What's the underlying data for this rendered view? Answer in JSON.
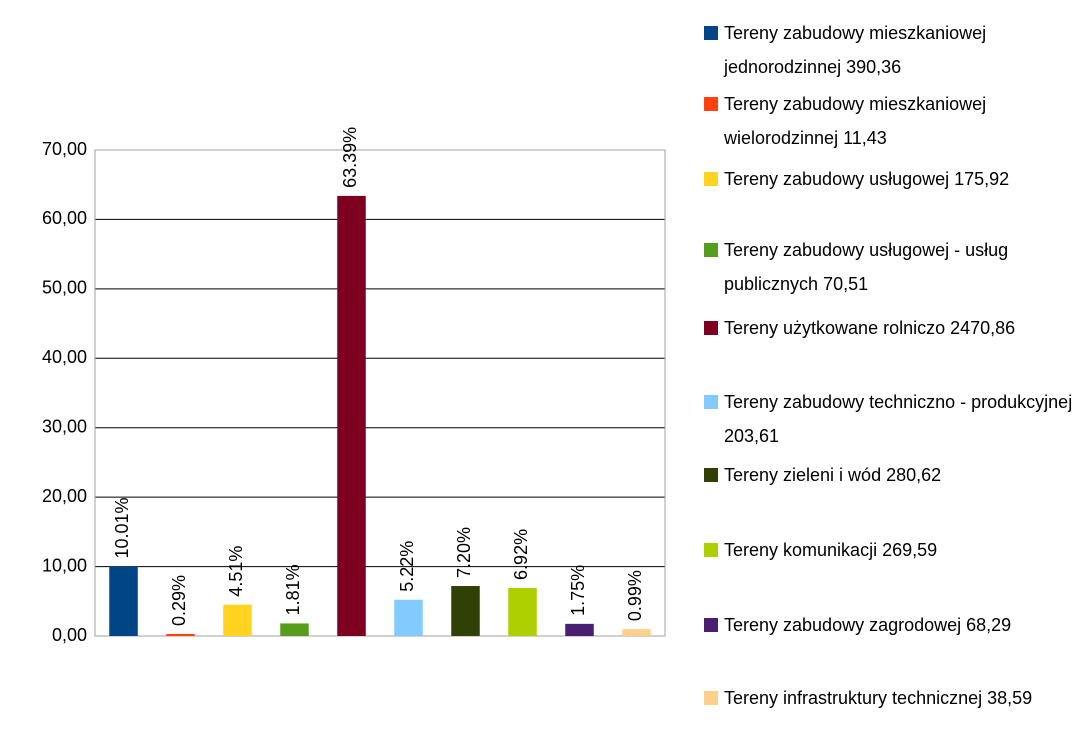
{
  "chart_data": {
    "type": "bar",
    "series": [
      {
        "name": "Tereny zabudowy mieszkaniowej jednorodzinnej 390,36",
        "color": "#004586",
        "values": [
          10.01
        ],
        "value_labels": [
          "10.01%"
        ]
      },
      {
        "name": "Tereny zabudowy mieszkaniowej wielorodzinnej 11,43",
        "color": "#ff420e",
        "values": [
          0.29
        ],
        "value_labels": [
          "0.29%"
        ]
      },
      {
        "name": "Tereny zabudowy usługowej 175,92",
        "color": "#ffd320",
        "values": [
          4.51
        ],
        "value_labels": [
          "4.51%"
        ]
      },
      {
        "name": "Tereny zabudowy usługowej - usług publicznych 70,51",
        "color": "#579d1c",
        "values": [
          1.81
        ],
        "value_labels": [
          "1.81%"
        ]
      },
      {
        "name": "Tereny użytkowane rolniczo 2470,86",
        "color": "#7e0021",
        "values": [
          63.39
        ],
        "value_labels": [
          "63.39%"
        ]
      },
      {
        "name": "Tereny zabudowy techniczno - produkcyjnej 203,61",
        "color": "#83caff",
        "values": [
          5.22
        ],
        "value_labels": [
          "5.22%"
        ]
      },
      {
        "name": "Tereny zieleni i wód 280,62",
        "color": "#314004",
        "values": [
          7.2
        ],
        "value_labels": [
          "7.20%"
        ]
      },
      {
        "name": "Tereny komunikacji 269,59",
        "color": "#aecf00",
        "values": [
          6.92
        ],
        "value_labels": [
          "6.92%"
        ]
      },
      {
        "name": "Tereny zabudowy zagrodowej 68,29",
        "color": "#4b1f6f",
        "values": [
          1.75
        ],
        "value_labels": [
          "1.75%"
        ]
      },
      {
        "name": "Tereny infrastruktury technicznej 38,59",
        "color": "#ffd08b",
        "values": [
          0.99
        ],
        "value_labels": [
          "0.99%"
        ]
      }
    ],
    "ylim": [
      0,
      70
    ],
    "yticks": [
      {
        "value": 0,
        "label": "0,00"
      },
      {
        "value": 10,
        "label": "10,00"
      },
      {
        "value": 20,
        "label": "20,00"
      },
      {
        "value": 30,
        "label": "30,00"
      },
      {
        "value": 40,
        "label": "40,00"
      },
      {
        "value": 50,
        "label": "50,00"
      },
      {
        "value": 60,
        "label": "60,00"
      },
      {
        "value": 70,
        "label": "70,00"
      }
    ],
    "grid": true,
    "legend": "right"
  }
}
